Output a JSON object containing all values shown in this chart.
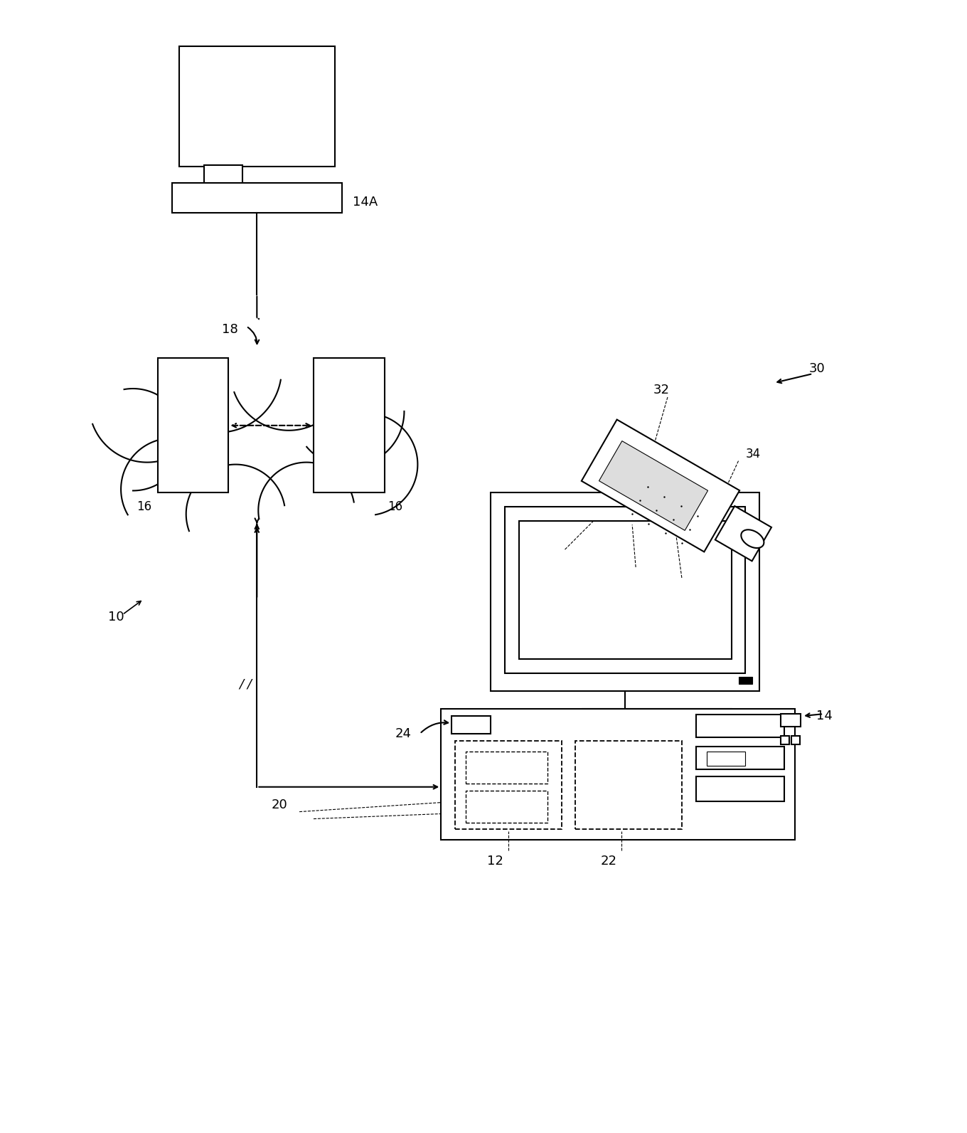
{
  "bg_color": "#ffffff",
  "line_color": "#000000",
  "fig_width": 13.6,
  "fig_height": 15.92
}
